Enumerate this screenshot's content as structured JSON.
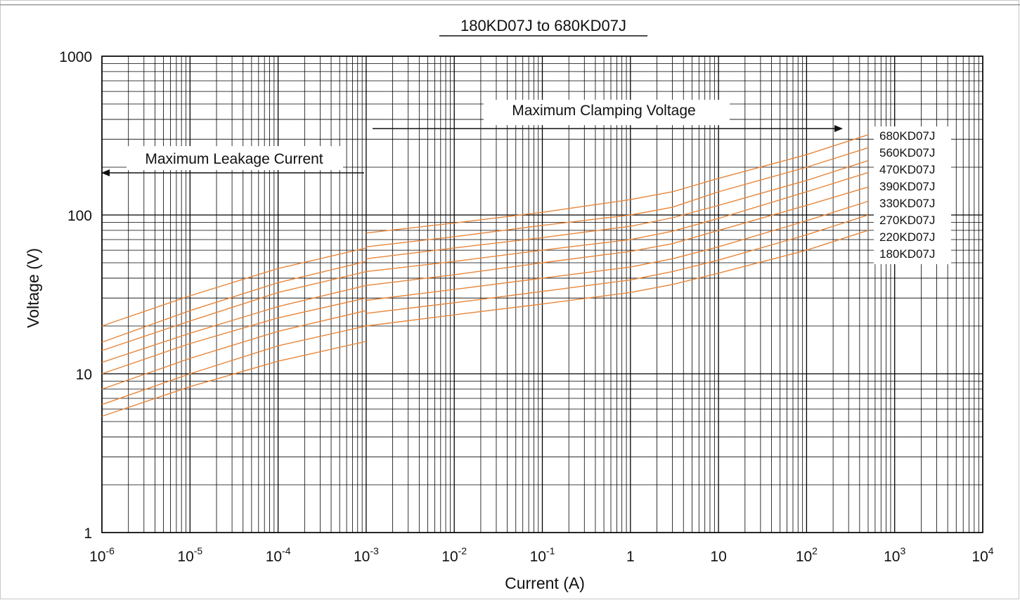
{
  "chart_data": {
    "type": "line",
    "title": "180KD07J to 680KD07J",
    "xlabel": "Current (A)",
    "ylabel": "Voltage (V)",
    "x_scale": "log",
    "y_scale": "log",
    "xlim": [
      1e-06,
      10000
    ],
    "ylim": [
      1,
      1000
    ],
    "grid": true,
    "x_tick_labels": [
      {
        "base": "10",
        "exp": "-6"
      },
      {
        "base": "10",
        "exp": "-5"
      },
      {
        "base": "10",
        "exp": "-4"
      },
      {
        "base": "10",
        "exp": "-3"
      },
      {
        "base": "10",
        "exp": "-2"
      },
      {
        "base": "10",
        "exp": "-1"
      },
      {
        "base": "1",
        "exp": ""
      },
      {
        "base": "10",
        "exp": ""
      },
      {
        "base": "10",
        "exp": "2"
      },
      {
        "base": "10",
        "exp": "3"
      },
      {
        "base": "10",
        "exp": "4"
      }
    ],
    "y_tick_labels": [
      "1",
      "10",
      "100",
      "1000"
    ],
    "annotations": {
      "clamping": "Maximum Clamping Voltage",
      "leakage": "Maximum Leakage Current"
    },
    "line_color": "#e8863a",
    "leakage_series": [
      {
        "name": "680KD07J",
        "x": [
          1e-06,
          1e-05,
          0.0001,
          0.001
        ],
        "y": [
          20,
          31,
          46,
          62
        ]
      },
      {
        "name": "560KD07J",
        "x": [
          1e-06,
          1e-05,
          0.0001,
          0.001
        ],
        "y": [
          15.8,
          25,
          37.5,
          51
        ]
      },
      {
        "name": "470KD07J",
        "x": [
          1e-06,
          1e-05,
          0.0001,
          0.001
        ],
        "y": [
          14,
          21.5,
          32.5,
          44
        ]
      },
      {
        "name": "390KD07J",
        "x": [
          1e-06,
          1e-05,
          0.0001,
          0.001
        ],
        "y": [
          11.8,
          18,
          26.5,
          36
        ]
      },
      {
        "name": "330KD07J",
        "x": [
          1e-06,
          1e-05,
          0.0001,
          0.001
        ],
        "y": [
          10,
          15.5,
          22.5,
          30
        ]
      },
      {
        "name": "270KD07J",
        "x": [
          1e-06,
          1e-05,
          0.0001,
          0.001
        ],
        "y": [
          8,
          12.5,
          18.5,
          25
        ]
      },
      {
        "name": "220KD07J",
        "x": [
          1e-06,
          1e-05,
          0.0001,
          0.001
        ],
        "y": [
          6.4,
          10,
          15,
          20
        ]
      },
      {
        "name": "180KD07J",
        "x": [
          1e-06,
          1e-05,
          0.0001,
          0.001
        ],
        "y": [
          5.4,
          8.3,
          12,
          16
        ]
      }
    ],
    "clamping_series": [
      {
        "name": "680KD07J",
        "x": [
          0.001,
          0.01,
          0.1,
          1,
          3,
          10,
          100,
          500
        ],
        "y": [
          77,
          89,
          104,
          125,
          140,
          170,
          240,
          320
        ]
      },
      {
        "name": "560KD07J",
        "x": [
          0.001,
          0.01,
          0.1,
          1,
          3,
          10,
          100,
          500
        ],
        "y": [
          63,
          73,
          86,
          100,
          112,
          140,
          200,
          265
        ]
      },
      {
        "name": "470KD07J",
        "x": [
          0.001,
          0.01,
          0.1,
          1,
          3,
          10,
          100,
          500
        ],
        "y": [
          53,
          62,
          72,
          85,
          96,
          115,
          165,
          220
        ]
      },
      {
        "name": "390KD07J",
        "x": [
          0.001,
          0.01,
          0.1,
          1,
          3,
          10,
          100,
          500
        ],
        "y": [
          44,
          51,
          60,
          70,
          79,
          95,
          140,
          185
        ]
      },
      {
        "name": "330KD07J",
        "x": [
          0.001,
          0.01,
          0.1,
          1,
          3,
          10,
          100,
          500
        ],
        "y": [
          36,
          42,
          50,
          59,
          66,
          80,
          115,
          150
        ]
      },
      {
        "name": "270KD07J",
        "x": [
          0.001,
          0.01,
          0.1,
          1,
          3,
          10,
          100,
          500
        ],
        "y": [
          29,
          34,
          40,
          47,
          53,
          63,
          92,
          122
        ]
      },
      {
        "name": "220KD07J",
        "x": [
          0.001,
          0.01,
          0.1,
          1,
          3,
          10,
          100,
          500
        ],
        "y": [
          24,
          28,
          33,
          39,
          44,
          52,
          75,
          100
        ]
      },
      {
        "name": "180KD07J",
        "x": [
          0.001,
          0.01,
          0.1,
          1,
          3,
          10,
          100,
          500
        ],
        "y": [
          20,
          23.5,
          27.5,
          32.5,
          36.5,
          43,
          60,
          80
        ]
      }
    ]
  }
}
